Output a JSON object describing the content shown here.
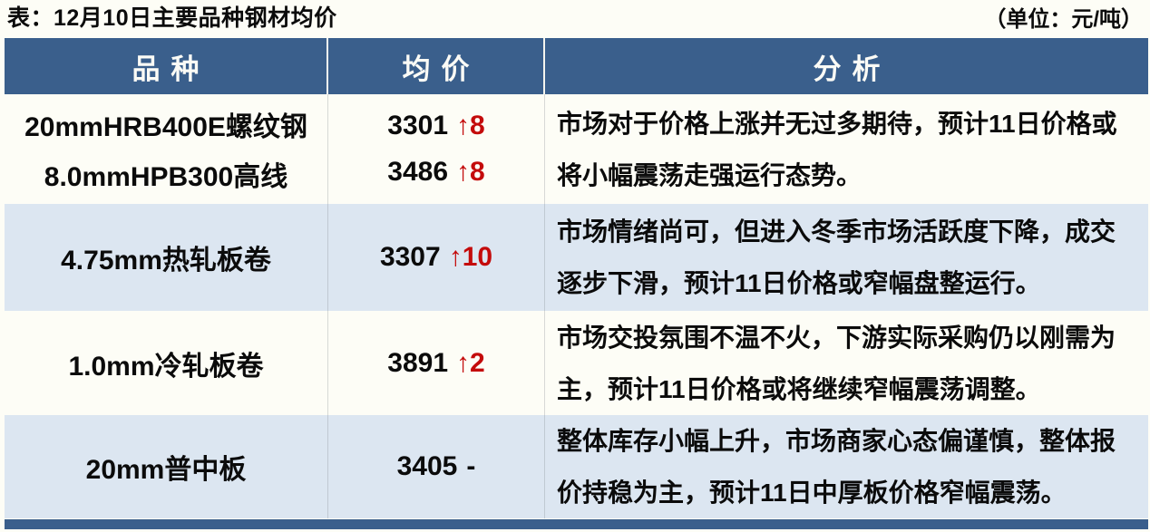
{
  "page_title": "表：12月10日主要品种钢材均价",
  "unit_note": "（单位：元/吨）",
  "chart_data": {
    "type": "table",
    "title": "12月10日主要品种钢材均价",
    "unit": "元/吨",
    "columns": [
      "品种",
      "均价",
      "分析"
    ],
    "header": {
      "product": "品种",
      "price": "均价",
      "analysis": "分析"
    },
    "rows": [
      {
        "products": [
          {
            "name": "20mmHRB400E螺纹钢",
            "price": "3301",
            "change": "↑8",
            "direction": "up"
          },
          {
            "name": "8.0mmHPB300高线",
            "price": "3486",
            "change": "↑8",
            "direction": "up"
          }
        ],
        "analysis": "市场对于价格上涨并无过多期待，预计11日价格或将小幅震荡走强运行态势。"
      },
      {
        "products": [
          {
            "name": "4.75mm热轧板卷",
            "price": "3307",
            "change": "↑10",
            "direction": "up"
          }
        ],
        "analysis": "市场情绪尚可，但进入冬季市场活跃度下降，成交逐步下滑，预计11日价格或窄幅盘整运行。"
      },
      {
        "products": [
          {
            "name": "1.0mm冷轧板卷",
            "price": "3891",
            "change": "↑2",
            "direction": "up"
          }
        ],
        "analysis": "市场交投氛围不温不火，下游实际采购仍以刚需为主，预计11日价格或将继续窄幅震荡调整。"
      },
      {
        "products": [
          {
            "name": "20mm普中板",
            "price": "3405",
            "change": "-",
            "direction": "flat"
          }
        ],
        "analysis": "整体库存小幅上升，市场商家心态偏谨慎，整体报价持稳为主，预计11日中厚板价格窄幅震荡。"
      }
    ]
  },
  "colors": {
    "header_bg": "#3a5f8c",
    "alt_row_bg": "#dce6f1",
    "page_bg": "#fdfdf6",
    "up_red": "#c40b0b",
    "footer_bar": "#3a5f8c"
  }
}
